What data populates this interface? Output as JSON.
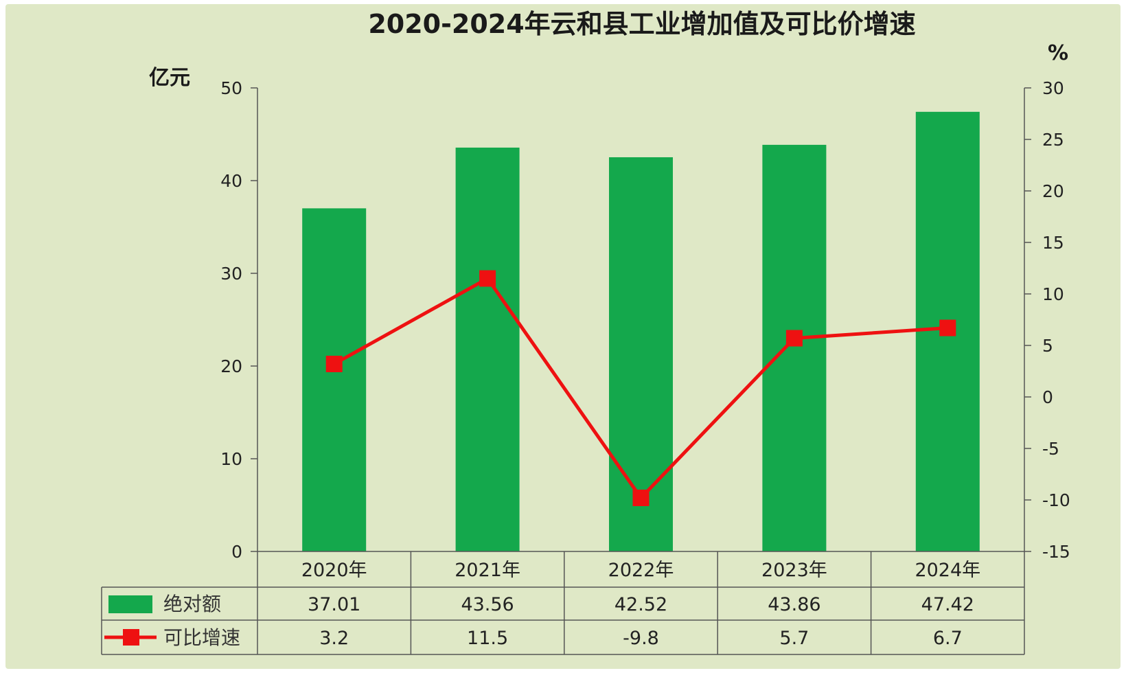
{
  "chart_data": {
    "type": "bar",
    "title": "2020-2024年云和县工业增加值及可比价增速",
    "categories": [
      "2020年",
      "2021年",
      "2022年",
      "2023年",
      "2024年"
    ],
    "ylabel": "亿元",
    "y2label": "%",
    "ylim": [
      0,
      50
    ],
    "yticks": [
      0,
      10,
      20,
      30,
      40,
      50
    ],
    "y2lim": [
      -15,
      30
    ],
    "y2ticks": [
      -15,
      -10,
      -5,
      0,
      5,
      10,
      15,
      20,
      25,
      30
    ],
    "series": [
      {
        "name": "绝对额",
        "type": "bar",
        "axis": "left",
        "color": "#14a84c",
        "values": [
          37.01,
          43.56,
          42.52,
          43.86,
          47.42
        ],
        "labels": [
          "37.01",
          "43.56",
          "42.52",
          "43.86",
          "47.42"
        ]
      },
      {
        "name": "可比增速",
        "type": "line",
        "axis": "right",
        "color": "#ee1111",
        "values": [
          3.2,
          11.5,
          -9.8,
          5.7,
          6.7
        ],
        "labels": [
          "3.2",
          "11.5",
          "-9.8",
          "5.7",
          "6.7"
        ]
      }
    ],
    "grid": false,
    "legend": "data-table-left"
  },
  "colors": {
    "background": "#dfe8c6",
    "bar": "#14a84c",
    "line": "#ee1111",
    "axis": "#555555"
  }
}
